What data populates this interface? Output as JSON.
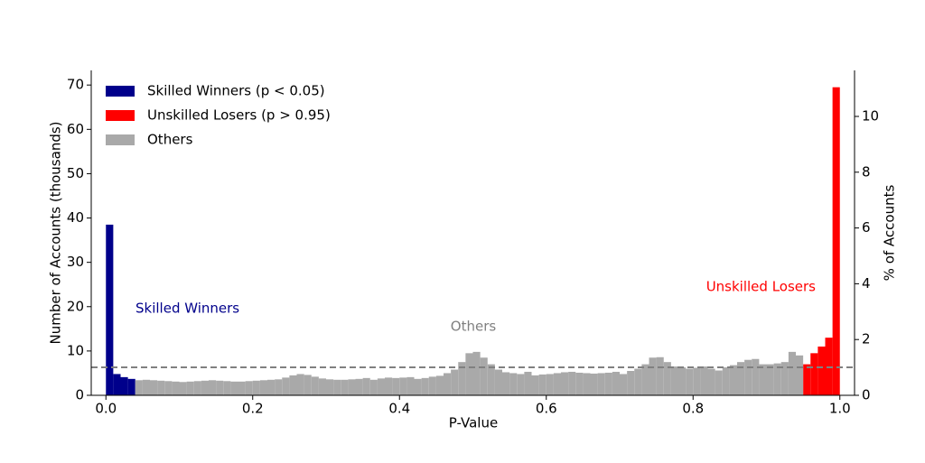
{
  "chart_data": {
    "type": "histogram",
    "xlabel": "P-Value",
    "ylabel": "Number of Accounts (thousands)",
    "y2label": "% of Accounts",
    "xlim": [
      -0.02,
      1.02
    ],
    "ylim": [
      0,
      73.3
    ],
    "y2lim": [
      0,
      11.65
    ],
    "xticks": [
      {
        "value": 0,
        "label": "0.0"
      },
      0.2,
      0.4,
      0.6,
      0.8,
      {
        "value": 1,
        "label": "1.0"
      }
    ],
    "yticks": [
      0,
      10,
      20,
      30,
      40,
      50,
      60,
      70
    ],
    "y2ticks": [
      0,
      2,
      4,
      6,
      8,
      10
    ],
    "legend": "upper left",
    "reference_line": 6.3,
    "series": [
      {
        "name": "Skilled Winners (p < 0.05)",
        "color": "#00008b",
        "bins": [
          0,
          0.01,
          0.02,
          0.03,
          0.04
        ],
        "values": [
          38.5,
          4.8,
          4.1,
          3.7
        ]
      },
      {
        "name": "Unskilled Losers (p > 0.95)",
        "color": "#ff0000",
        "bins": [
          0.95,
          0.96,
          0.97,
          0.98,
          0.99,
          1.0
        ],
        "values": [
          7.0,
          9.5,
          11.0,
          13.0,
          69.5
        ]
      },
      {
        "name": "Others",
        "color": "#a9a9a9",
        "bins": [
          0.04,
          0.05,
          0.06,
          0.07,
          0.08,
          0.09,
          0.1,
          0.11,
          0.12,
          0.13,
          0.14,
          0.15,
          0.16,
          0.17,
          0.18,
          0.19,
          0.2,
          0.21,
          0.22,
          0.23,
          0.24,
          0.25,
          0.26,
          0.27,
          0.28,
          0.29,
          0.3,
          0.31,
          0.32,
          0.33,
          0.34,
          0.35,
          0.36,
          0.37,
          0.38,
          0.39,
          0.4,
          0.41,
          0.42,
          0.43,
          0.44,
          0.45,
          0.46,
          0.47,
          0.48,
          0.49,
          0.5,
          0.51,
          0.52,
          0.53,
          0.54,
          0.55,
          0.56,
          0.57,
          0.58,
          0.59,
          0.6,
          0.61,
          0.62,
          0.63,
          0.64,
          0.65,
          0.66,
          0.67,
          0.68,
          0.69,
          0.7,
          0.71,
          0.72,
          0.73,
          0.74,
          0.75,
          0.76,
          0.77,
          0.78,
          0.79,
          0.8,
          0.81,
          0.82,
          0.83,
          0.84,
          0.85,
          0.86,
          0.87,
          0.88,
          0.89,
          0.9,
          0.91,
          0.92,
          0.93,
          0.94,
          0.95
        ],
        "values": [
          3.4,
          3.5,
          3.4,
          3.3,
          3.2,
          3.1,
          3.0,
          3.1,
          3.2,
          3.3,
          3.4,
          3.3,
          3.2,
          3.1,
          3.1,
          3.2,
          3.3,
          3.4,
          3.5,
          3.6,
          4.0,
          4.5,
          4.8,
          4.6,
          4.2,
          3.8,
          3.6,
          3.5,
          3.5,
          3.6,
          3.7,
          3.9,
          3.5,
          3.8,
          4.0,
          3.9,
          4.0,
          4.1,
          3.7,
          3.9,
          4.2,
          4.4,
          5.0,
          5.8,
          7.5,
          9.5,
          9.8,
          8.5,
          7.0,
          5.8,
          5.2,
          5.0,
          4.8,
          5.3,
          4.5,
          4.7,
          4.8,
          5.0,
          5.2,
          5.3,
          5.1,
          5.0,
          4.9,
          5.0,
          5.1,
          5.3,
          4.8,
          5.5,
          6.0,
          7.0,
          8.5,
          8.6,
          7.5,
          6.5,
          6.3,
          6.0,
          6.2,
          6.5,
          6.0,
          5.6,
          6.3,
          6.8,
          7.5,
          8.0,
          8.2,
          7.0,
          7.0,
          7.2,
          7.5,
          9.8,
          9.0
        ]
      }
    ],
    "annotations": [
      {
        "text": "Skilled Winners",
        "color": "#00008b"
      },
      {
        "text": "Others",
        "color": "#808080"
      },
      {
        "text": "Unskilled Losers",
        "color": "#ff0000"
      }
    ]
  }
}
